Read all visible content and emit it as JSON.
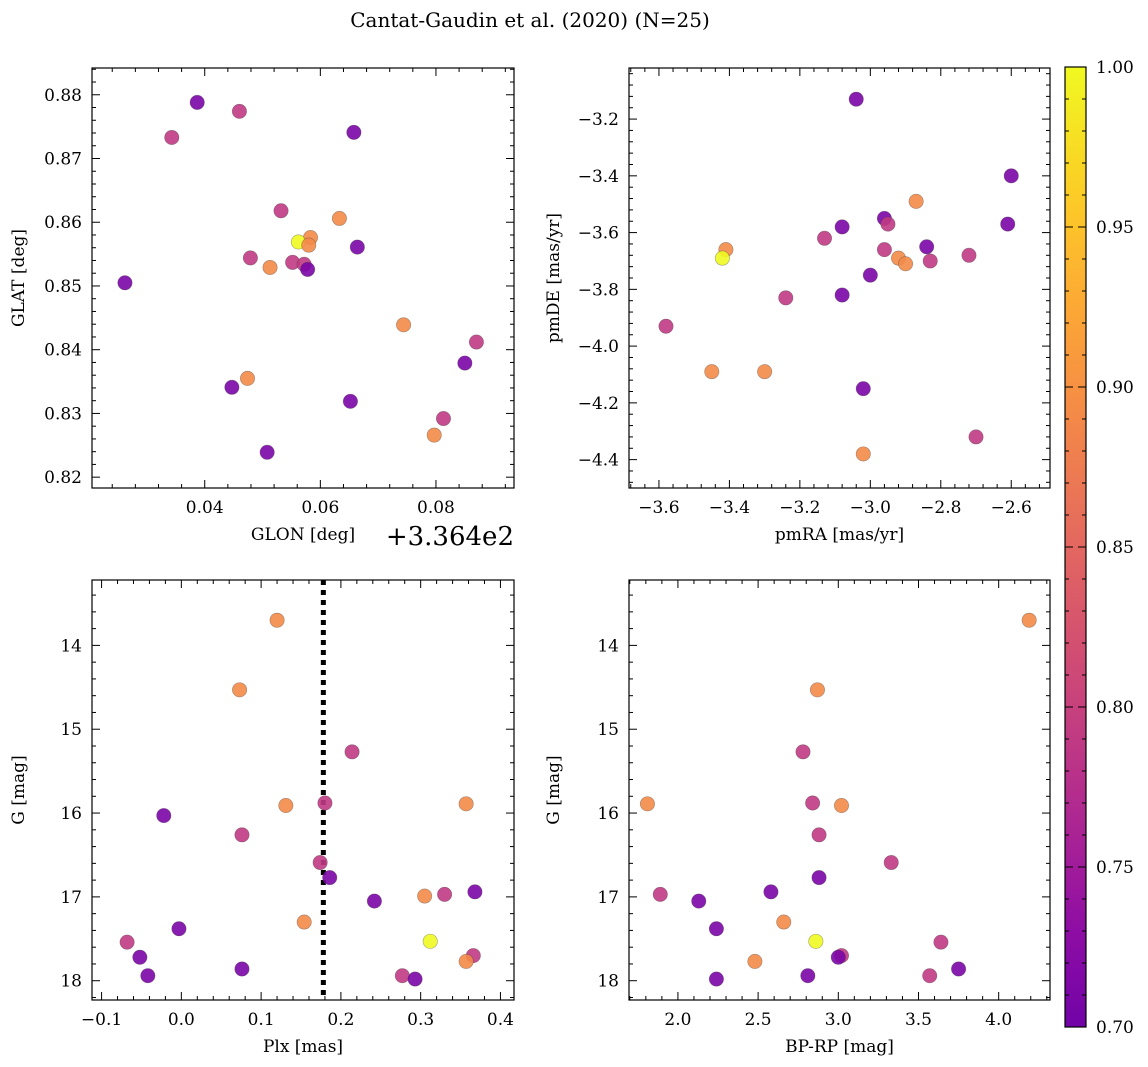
{
  "figure": {
    "title": "Cantat-Gaudin et al. (2020) (N=25)"
  },
  "colorbar": {
    "colormap": "plasma",
    "range": [
      0.7,
      1.0
    ],
    "ticks": [
      "0.70",
      "0.75",
      "0.80",
      "0.85",
      "0.90",
      "0.95",
      "1.00"
    ]
  },
  "chart_data": [
    {
      "type": "scatter",
      "xlabel": "GLON [deg]",
      "ylabel": "GLAT [deg]",
      "x_offset_label": "+3.364e2",
      "x_offset": 336.4,
      "xlim": [
        0.0205,
        0.0935
      ],
      "ylim": [
        0.8183,
        0.8842
      ],
      "x_major_ticks": [
        0.04,
        0.06,
        0.08
      ],
      "x_tick_labels": [
        "0.04",
        "0.06",
        "0.08"
      ],
      "y_major_ticks": [
        0.82,
        0.83,
        0.84,
        0.85,
        0.86,
        0.87,
        0.88
      ],
      "y_tick_labels": [
        "0.82",
        "0.83",
        "0.84",
        "0.85",
        "0.86",
        "0.87",
        "0.88"
      ],
      "points": [
        {
          "x": 0.0387,
          "y": 0.8788,
          "c": 0.71
        },
        {
          "x": 0.046,
          "y": 0.8774,
          "c": 0.79
        },
        {
          "x": 0.0343,
          "y": 0.8733,
          "c": 0.79
        },
        {
          "x": 0.0658,
          "y": 0.8741,
          "c": 0.71
        },
        {
          "x": 0.0532,
          "y": 0.8618,
          "c": 0.79
        },
        {
          "x": 0.0633,
          "y": 0.8606,
          "c": 0.89
        },
        {
          "x": 0.0583,
          "y": 0.8576,
          "c": 0.89
        },
        {
          "x": 0.0562,
          "y": 0.8569,
          "c": 1.0
        },
        {
          "x": 0.058,
          "y": 0.8564,
          "c": 0.89
        },
        {
          "x": 0.0664,
          "y": 0.8561,
          "c": 0.71
        },
        {
          "x": 0.0479,
          "y": 0.8544,
          "c": 0.79
        },
        {
          "x": 0.0552,
          "y": 0.8537,
          "c": 0.79
        },
        {
          "x": 0.0572,
          "y": 0.8534,
          "c": 0.79
        },
        {
          "x": 0.0513,
          "y": 0.8529,
          "c": 0.89
        },
        {
          "x": 0.0578,
          "y": 0.8526,
          "c": 0.71
        },
        {
          "x": 0.0262,
          "y": 0.8505,
          "c": 0.71
        },
        {
          "x": 0.0744,
          "y": 0.8439,
          "c": 0.89
        },
        {
          "x": 0.087,
          "y": 0.8412,
          "c": 0.79
        },
        {
          "x": 0.085,
          "y": 0.8379,
          "c": 0.71
        },
        {
          "x": 0.0474,
          "y": 0.8355,
          "c": 0.89
        },
        {
          "x": 0.0447,
          "y": 0.8341,
          "c": 0.71
        },
        {
          "x": 0.0652,
          "y": 0.8319,
          "c": 0.71
        },
        {
          "x": 0.0813,
          "y": 0.8292,
          "c": 0.79
        },
        {
          "x": 0.0797,
          "y": 0.8266,
          "c": 0.89
        },
        {
          "x": 0.0508,
          "y": 0.8239,
          "c": 0.71
        }
      ]
    },
    {
      "type": "scatter",
      "xlabel": "pmRA [mas/yr]",
      "ylabel": "pmDE [mas/yr]",
      "xlim": [
        -3.685,
        -2.49
      ],
      "ylim": [
        -4.5,
        -3.02
      ],
      "x_major_ticks": [
        -3.6,
        -3.4,
        -3.2,
        -3.0,
        -2.8,
        -2.6
      ],
      "x_tick_labels": [
        "−3.6",
        "−3.4",
        "−3.2",
        "−3.0",
        "−2.8",
        "−2.6"
      ],
      "y_major_ticks": [
        -4.4,
        -4.2,
        -4.0,
        -3.8,
        -3.6,
        -3.4,
        -3.2
      ],
      "y_tick_labels": [
        "−4.4",
        "−4.2",
        "−4.0",
        "−3.8",
        "−3.6",
        "−3.4",
        "−3.2"
      ],
      "points": [
        {
          "x": -3.04,
          "y": -3.13,
          "c": 0.71
        },
        {
          "x": -2.6,
          "y": -3.4,
          "c": 0.71
        },
        {
          "x": -2.61,
          "y": -3.57,
          "c": 0.71
        },
        {
          "x": -2.87,
          "y": -3.49,
          "c": 0.89
        },
        {
          "x": -2.96,
          "y": -3.55,
          "c": 0.71
        },
        {
          "x": -2.95,
          "y": -3.57,
          "c": 0.79
        },
        {
          "x": -3.08,
          "y": -3.58,
          "c": 0.71
        },
        {
          "x": -3.13,
          "y": -3.62,
          "c": 0.79
        },
        {
          "x": -2.96,
          "y": -3.66,
          "c": 0.79
        },
        {
          "x": -2.84,
          "y": -3.65,
          "c": 0.71
        },
        {
          "x": -2.92,
          "y": -3.69,
          "c": 0.89
        },
        {
          "x": -2.9,
          "y": -3.71,
          "c": 0.89
        },
        {
          "x": -2.83,
          "y": -3.7,
          "c": 0.79
        },
        {
          "x": -2.72,
          "y": -3.68,
          "c": 0.79
        },
        {
          "x": -3.41,
          "y": -3.66,
          "c": 0.89
        },
        {
          "x": -3.42,
          "y": -3.69,
          "c": 1.0
        },
        {
          "x": -3.0,
          "y": -3.75,
          "c": 0.71
        },
        {
          "x": -3.08,
          "y": -3.82,
          "c": 0.71
        },
        {
          "x": -3.24,
          "y": -3.83,
          "c": 0.79
        },
        {
          "x": -3.58,
          "y": -3.93,
          "c": 0.79
        },
        {
          "x": -3.45,
          "y": -4.09,
          "c": 0.89
        },
        {
          "x": -3.3,
          "y": -4.09,
          "c": 0.89
        },
        {
          "x": -3.02,
          "y": -4.15,
          "c": 0.71
        },
        {
          "x": -2.7,
          "y": -4.32,
          "c": 0.79
        },
        {
          "x": -3.02,
          "y": -4.38,
          "c": 0.89
        }
      ]
    },
    {
      "type": "scatter",
      "xlabel": "Plx [mas]",
      "ylabel": "G [mag]",
      "xlim": [
        -0.112,
        0.417
      ],
      "ylim": [
        18.23,
        13.22
      ],
      "y_inverted": true,
      "vline": {
        "x": 0.178,
        "style": "dotted"
      },
      "x_major_ticks": [
        -0.1,
        0.0,
        0.1,
        0.2,
        0.3,
        0.4
      ],
      "x_tick_labels": [
        "−0.1",
        "0.0",
        "0.1",
        "0.2",
        "0.3",
        "0.4"
      ],
      "y_major_ticks": [
        14,
        15,
        16,
        17,
        18
      ],
      "y_tick_labels": [
        "14",
        "15",
        "16",
        "17",
        "18"
      ],
      "points": [
        {
          "x": 0.12,
          "y": 13.7,
          "c": 0.89
        },
        {
          "x": 0.073,
          "y": 14.53,
          "c": 0.89
        },
        {
          "x": 0.214,
          "y": 15.27,
          "c": 0.79
        },
        {
          "x": 0.18,
          "y": 15.88,
          "c": 0.79
        },
        {
          "x": 0.131,
          "y": 15.91,
          "c": 0.89
        },
        {
          "x": 0.357,
          "y": 15.89,
          "c": 0.89
        },
        {
          "x": -0.022,
          "y": 16.03,
          "c": 0.71
        },
        {
          "x": 0.076,
          "y": 16.26,
          "c": 0.79
        },
        {
          "x": 0.174,
          "y": 16.59,
          "c": 0.79
        },
        {
          "x": 0.186,
          "y": 16.77,
          "c": 0.71
        },
        {
          "x": 0.368,
          "y": 16.94,
          "c": 0.71
        },
        {
          "x": 0.33,
          "y": 16.97,
          "c": 0.79
        },
        {
          "x": 0.305,
          "y": 16.99,
          "c": 0.89
        },
        {
          "x": 0.242,
          "y": 17.05,
          "c": 0.71
        },
        {
          "x": 0.154,
          "y": 17.3,
          "c": 0.89
        },
        {
          "x": -0.003,
          "y": 17.38,
          "c": 0.71
        },
        {
          "x": 0.312,
          "y": 17.53,
          "c": 1.0
        },
        {
          "x": -0.068,
          "y": 17.54,
          "c": 0.79
        },
        {
          "x": -0.052,
          "y": 17.72,
          "c": 0.71
        },
        {
          "x": 0.366,
          "y": 17.7,
          "c": 0.79
        },
        {
          "x": 0.357,
          "y": 17.77,
          "c": 0.89
        },
        {
          "x": 0.076,
          "y": 17.86,
          "c": 0.71
        },
        {
          "x": -0.042,
          "y": 17.94,
          "c": 0.71
        },
        {
          "x": 0.277,
          "y": 17.94,
          "c": 0.79
        },
        {
          "x": 0.293,
          "y": 17.98,
          "c": 0.71
        }
      ]
    },
    {
      "type": "scatter",
      "xlabel": "BP-RP [mag]",
      "ylabel": "G [mag]",
      "xlim": [
        1.695,
        4.32
      ],
      "ylim": [
        18.23,
        13.22
      ],
      "y_inverted": true,
      "x_major_ticks": [
        2.0,
        2.5,
        3.0,
        3.5,
        4.0
      ],
      "x_tick_labels": [
        "2.0",
        "2.5",
        "3.0",
        "3.5",
        "4.0"
      ],
      "y_major_ticks": [
        14,
        15,
        16,
        17,
        18
      ],
      "y_tick_labels": [
        "14",
        "15",
        "16",
        "17",
        "18"
      ],
      "points": [
        {
          "x": 4.19,
          "y": 13.7,
          "c": 0.89
        },
        {
          "x": 2.87,
          "y": 14.53,
          "c": 0.89
        },
        {
          "x": 2.78,
          "y": 15.27,
          "c": 0.79
        },
        {
          "x": 2.84,
          "y": 15.88,
          "c": 0.79
        },
        {
          "x": 1.81,
          "y": 15.89,
          "c": 0.89
        },
        {
          "x": 3.02,
          "y": 15.91,
          "c": 0.89
        },
        {
          "x": 2.88,
          "y": 16.26,
          "c": 0.79
        },
        {
          "x": 3.33,
          "y": 16.59,
          "c": 0.79
        },
        {
          "x": 2.88,
          "y": 16.77,
          "c": 0.71
        },
        {
          "x": 2.58,
          "y": 16.94,
          "c": 0.71
        },
        {
          "x": 1.89,
          "y": 16.97,
          "c": 0.79
        },
        {
          "x": 2.13,
          "y": 17.05,
          "c": 0.71
        },
        {
          "x": 2.66,
          "y": 17.3,
          "c": 0.89
        },
        {
          "x": 2.24,
          "y": 17.38,
          "c": 0.71
        },
        {
          "x": 2.86,
          "y": 17.53,
          "c": 1.0
        },
        {
          "x": 3.64,
          "y": 17.54,
          "c": 0.79
        },
        {
          "x": 3.02,
          "y": 17.7,
          "c": 0.79
        },
        {
          "x": 3.0,
          "y": 17.72,
          "c": 0.71
        },
        {
          "x": 2.48,
          "y": 17.77,
          "c": 0.89
        },
        {
          "x": 3.75,
          "y": 17.86,
          "c": 0.71
        },
        {
          "x": 2.81,
          "y": 17.94,
          "c": 0.71
        },
        {
          "x": 3.57,
          "y": 17.94,
          "c": 0.79
        },
        {
          "x": 2.24,
          "y": 17.98,
          "c": 0.71
        }
      ]
    }
  ]
}
